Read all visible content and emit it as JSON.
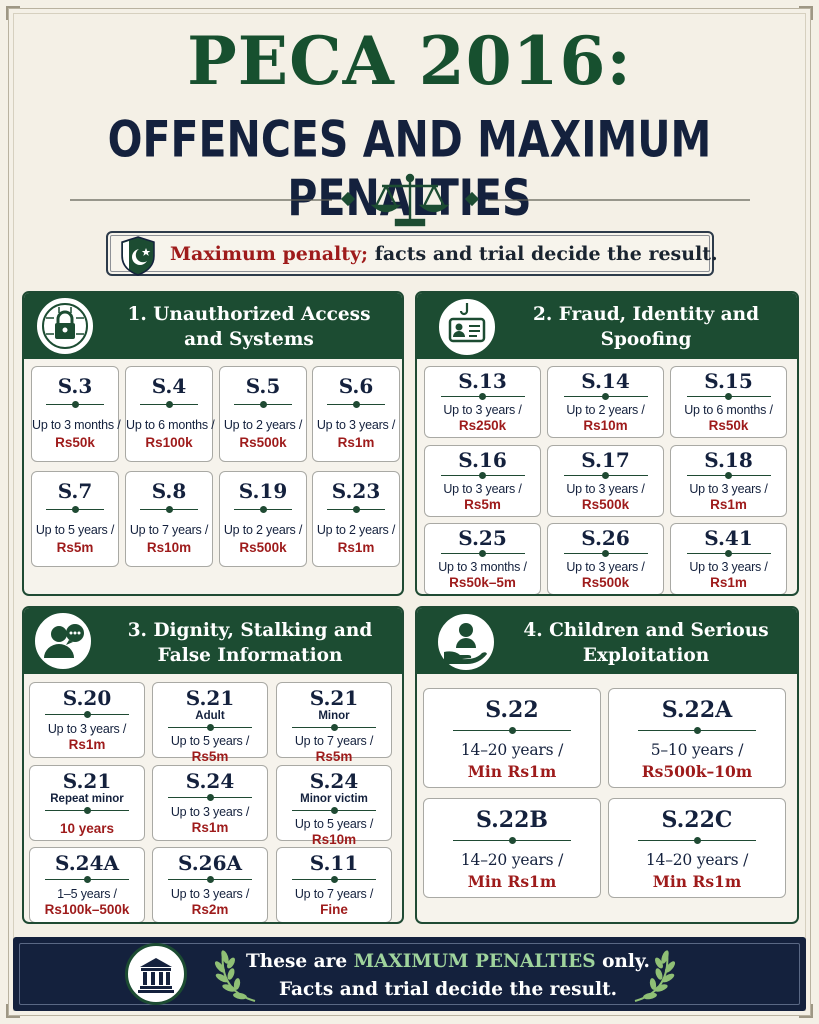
{
  "header": {
    "title": "PECA 2016:",
    "subtitle": "OFFENCES AND MAXIMUM PENALTIES"
  },
  "notice": {
    "highlight": "Maximum penalty;",
    "rest": " facts and trial decide the result."
  },
  "colors": {
    "green": "#1c4c32",
    "navy": "#14213d",
    "red": "#9e1b1b",
    "cream": "#f4f0e6"
  },
  "panels": [
    {
      "title_line1": "1. Unauthorized Access",
      "title_line2": "and Systems",
      "icon": "lock-icon",
      "cards": [
        {
          "section": "S.3",
          "term": "Up to 3 months /",
          "fine": "Rs50k"
        },
        {
          "section": "S.4",
          "term": "Up to 6 months /",
          "fine": "Rs100k"
        },
        {
          "section": "S.5",
          "term": "Up to 2 years /",
          "fine": "Rs500k"
        },
        {
          "section": "S.6",
          "term": "Up to 3 years /",
          "fine": "Rs1m"
        },
        {
          "section": "S.7",
          "term": "Up to 5 years /",
          "fine": "Rs5m"
        },
        {
          "section": "S.8",
          "term": "Up to 7 years /",
          "fine": "Rs10m"
        },
        {
          "section": "S.19",
          "term": "Up to 2 years /",
          "fine": "Rs500k"
        },
        {
          "section": "S.23",
          "term": "Up to 2 years /",
          "fine": "Rs1m"
        }
      ]
    },
    {
      "title_line1": "2. Fraud, Identity and",
      "title_line2": "Spoofing",
      "icon": "id-badge-hook-icon",
      "cards": [
        {
          "section": "S.13",
          "term": "Up to 3 years /",
          "fine": "Rs250k"
        },
        {
          "section": "S.14",
          "term": "Up to 2 years /",
          "fine": "Rs10m"
        },
        {
          "section": "S.15",
          "term": "Up to 6 months /",
          "fine": "Rs50k"
        },
        {
          "section": "S.16",
          "term": "Up to 3 years /",
          "fine": "Rs5m"
        },
        {
          "section": "S.17",
          "term": "Up to 3 years /",
          "fine": "Rs500k"
        },
        {
          "section": "S.18",
          "term": "Up to 3 years /",
          "fine": "Rs1m"
        },
        {
          "section": "S.25",
          "term": "Up to 3 months /",
          "fine": "Rs50k–5m"
        },
        {
          "section": "S.26",
          "term": "Up to 3 years /",
          "fine": "Rs500k"
        },
        {
          "section": "S.41",
          "term": "Up to 3 years /",
          "fine": "Rs1m"
        }
      ]
    },
    {
      "title_line1": "3. Dignity, Stalking and",
      "title_line2": "False Information",
      "icon": "person-speech-icon",
      "cards": [
        {
          "section": "S.20",
          "sub": "",
          "term": "Up to 3 years /",
          "fine": "Rs1m"
        },
        {
          "section": "S.21",
          "sub": "Adult",
          "term": "Up to 5 years /",
          "fine": "Rs5m"
        },
        {
          "section": "S.21",
          "sub": "Minor",
          "term": "Up to 7 years /",
          "fine": "Rs5m"
        },
        {
          "section": "S.21",
          "sub": "Repeat minor",
          "term": "",
          "fine": "10 years"
        },
        {
          "section": "S.24",
          "sub": "",
          "term": "Up to 3 years /",
          "fine": "Rs1m"
        },
        {
          "section": "S.24",
          "sub": "Minor victim",
          "term": "Up to 5 years /",
          "fine": "Rs10m"
        },
        {
          "section": "S.24A",
          "sub": "",
          "term": "1–5 years /",
          "fine": "Rs100k–500k"
        },
        {
          "section": "S.26A",
          "sub": "",
          "term": "Up to 3 years /",
          "fine": "Rs2m"
        },
        {
          "section": "S.11",
          "sub": "",
          "term": "Up to 7 years /",
          "fine": "Fine"
        }
      ]
    },
    {
      "title_line1": "4. Children and Serious",
      "title_line2": "Exploitation",
      "icon": "child-hand-icon",
      "cards": [
        {
          "section": "S.22",
          "term": "14–20 years /",
          "fine": "Min Rs1m"
        },
        {
          "section": "S.22A",
          "term": "5–10 years /",
          "fine": "Rs500k–10m"
        },
        {
          "section": "S.22B",
          "term": "14–20 years /",
          "fine": "Min Rs1m"
        },
        {
          "section": "S.22C",
          "term": "14–20 years /",
          "fine": "Min Rs1m"
        }
      ]
    }
  ],
  "footer": {
    "line1_prefix": "These are ",
    "line1_highlight": "MAXIMUM PENALTIES",
    "line1_suffix": " only.",
    "line2": "Facts and trial decide the result."
  }
}
